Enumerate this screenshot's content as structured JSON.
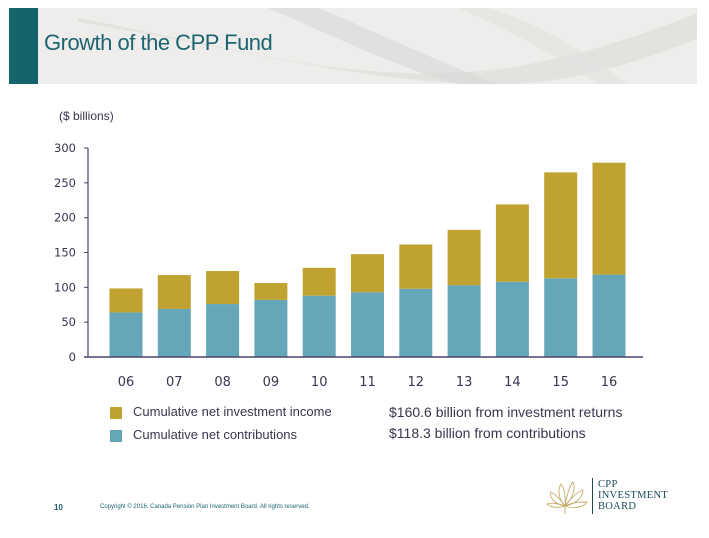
{
  "header": {
    "title": "Growth of the CPP Fund"
  },
  "colors": {
    "accent": "#14646e",
    "income": "#bfa22f",
    "contributions": "#65a7b8",
    "axis": "#4a4368"
  },
  "chart_data": {
    "type": "bar",
    "stacked": true,
    "title": "Growth of the CPP Fund",
    "ylabel": "($ billions)",
    "xlabel": "",
    "ylim": [
      0,
      300
    ],
    "yticks": [
      0,
      50,
      100,
      150,
      200,
      250,
      300
    ],
    "categories": [
      "06",
      "07",
      "08",
      "09",
      "10",
      "11",
      "12",
      "13",
      "14",
      "15",
      "16"
    ],
    "series": [
      {
        "name": "Cumulative net contributions",
        "color": "#65a7b8",
        "values": [
          64,
          69,
          76,
          82,
          88,
          93,
          98,
          103,
          108,
          113,
          118.3
        ]
      },
      {
        "name": "Cumulative net investment income",
        "color": "#bfa22f",
        "values": [
          34.4,
          48.6,
          47.4,
          24.2,
          40,
          54.6,
          63.5,
          79.5,
          111,
          152,
          160.6
        ]
      }
    ],
    "legend_position": "bottom-left",
    "grid": false
  },
  "legend": {
    "items": [
      {
        "label": "Cumulative net investment income",
        "color": "#bfa22f"
      },
      {
        "label": "Cumulative net contributions",
        "color": "#65a7b8"
      }
    ]
  },
  "notes": [
    "$160.6 billion from investment returns",
    "$118.3 billion from contributions"
  ],
  "footer": {
    "page_number": "10",
    "copyright": "Copyright © 2016. Canada Pension Plan Investment Board. All rights reserved."
  },
  "logo": {
    "line1": "CPP",
    "line2": "INVESTMENT",
    "line3": "BOARD"
  }
}
